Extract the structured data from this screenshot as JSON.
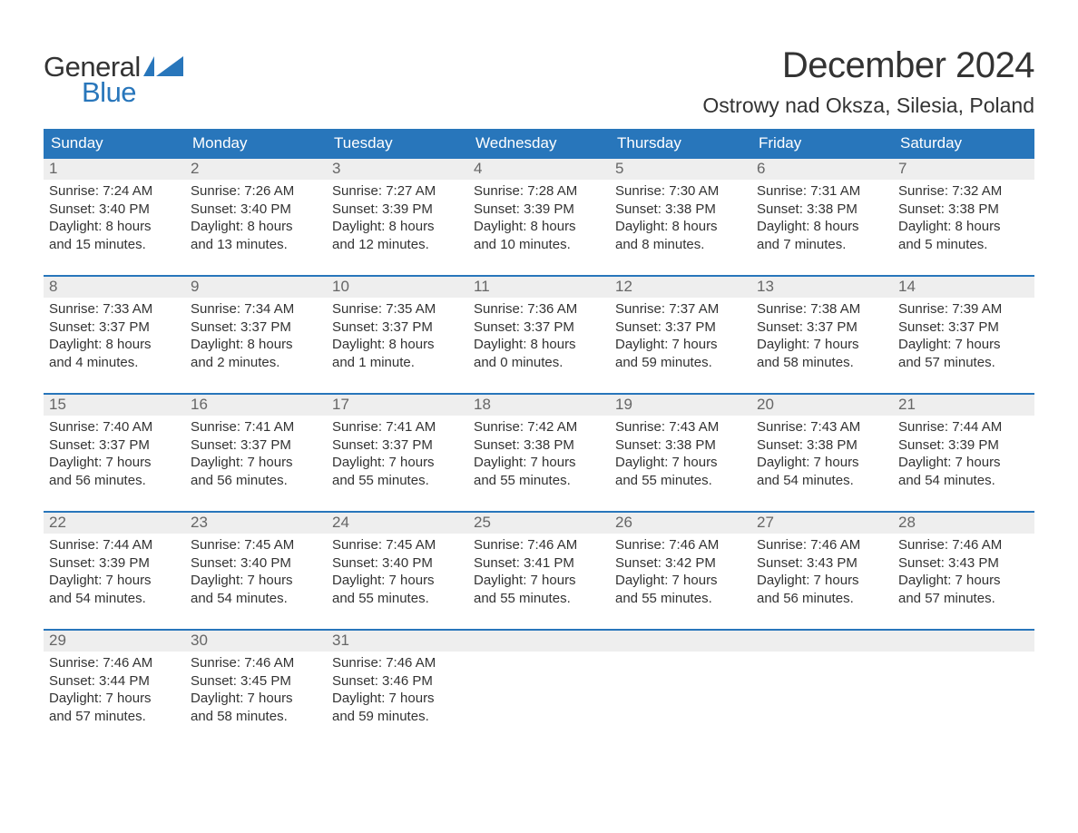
{
  "logo": {
    "general": "General",
    "blue": "Blue",
    "flag_color": "#2876bb"
  },
  "title": "December 2024",
  "location": "Ostrowy nad Oksza, Silesia, Poland",
  "colors": {
    "header_bg": "#2876bb",
    "header_text": "#ffffff",
    "week_border": "#2876bb",
    "daynum_bg": "#eeeeee",
    "daynum_text": "#666666",
    "body_text": "#333333",
    "page_bg": "#ffffff"
  },
  "day_names": [
    "Sunday",
    "Monday",
    "Tuesday",
    "Wednesday",
    "Thursday",
    "Friday",
    "Saturday"
  ],
  "weeks": [
    [
      {
        "n": "1",
        "sunrise": "Sunrise: 7:24 AM",
        "sunset": "Sunset: 3:40 PM",
        "d1": "Daylight: 8 hours",
        "d2": "and 15 minutes."
      },
      {
        "n": "2",
        "sunrise": "Sunrise: 7:26 AM",
        "sunset": "Sunset: 3:40 PM",
        "d1": "Daylight: 8 hours",
        "d2": "and 13 minutes."
      },
      {
        "n": "3",
        "sunrise": "Sunrise: 7:27 AM",
        "sunset": "Sunset: 3:39 PM",
        "d1": "Daylight: 8 hours",
        "d2": "and 12 minutes."
      },
      {
        "n": "4",
        "sunrise": "Sunrise: 7:28 AM",
        "sunset": "Sunset: 3:39 PM",
        "d1": "Daylight: 8 hours",
        "d2": "and 10 minutes."
      },
      {
        "n": "5",
        "sunrise": "Sunrise: 7:30 AM",
        "sunset": "Sunset: 3:38 PM",
        "d1": "Daylight: 8 hours",
        "d2": "and 8 minutes."
      },
      {
        "n": "6",
        "sunrise": "Sunrise: 7:31 AM",
        "sunset": "Sunset: 3:38 PM",
        "d1": "Daylight: 8 hours",
        "d2": "and 7 minutes."
      },
      {
        "n": "7",
        "sunrise": "Sunrise: 7:32 AM",
        "sunset": "Sunset: 3:38 PM",
        "d1": "Daylight: 8 hours",
        "d2": "and 5 minutes."
      }
    ],
    [
      {
        "n": "8",
        "sunrise": "Sunrise: 7:33 AM",
        "sunset": "Sunset: 3:37 PM",
        "d1": "Daylight: 8 hours",
        "d2": "and 4 minutes."
      },
      {
        "n": "9",
        "sunrise": "Sunrise: 7:34 AM",
        "sunset": "Sunset: 3:37 PM",
        "d1": "Daylight: 8 hours",
        "d2": "and 2 minutes."
      },
      {
        "n": "10",
        "sunrise": "Sunrise: 7:35 AM",
        "sunset": "Sunset: 3:37 PM",
        "d1": "Daylight: 8 hours",
        "d2": "and 1 minute."
      },
      {
        "n": "11",
        "sunrise": "Sunrise: 7:36 AM",
        "sunset": "Sunset: 3:37 PM",
        "d1": "Daylight: 8 hours",
        "d2": "and 0 minutes."
      },
      {
        "n": "12",
        "sunrise": "Sunrise: 7:37 AM",
        "sunset": "Sunset: 3:37 PM",
        "d1": "Daylight: 7 hours",
        "d2": "and 59 minutes."
      },
      {
        "n": "13",
        "sunrise": "Sunrise: 7:38 AM",
        "sunset": "Sunset: 3:37 PM",
        "d1": "Daylight: 7 hours",
        "d2": "and 58 minutes."
      },
      {
        "n": "14",
        "sunrise": "Sunrise: 7:39 AM",
        "sunset": "Sunset: 3:37 PM",
        "d1": "Daylight: 7 hours",
        "d2": "and 57 minutes."
      }
    ],
    [
      {
        "n": "15",
        "sunrise": "Sunrise: 7:40 AM",
        "sunset": "Sunset: 3:37 PM",
        "d1": "Daylight: 7 hours",
        "d2": "and 56 minutes."
      },
      {
        "n": "16",
        "sunrise": "Sunrise: 7:41 AM",
        "sunset": "Sunset: 3:37 PM",
        "d1": "Daylight: 7 hours",
        "d2": "and 56 minutes."
      },
      {
        "n": "17",
        "sunrise": "Sunrise: 7:41 AM",
        "sunset": "Sunset: 3:37 PM",
        "d1": "Daylight: 7 hours",
        "d2": "and 55 minutes."
      },
      {
        "n": "18",
        "sunrise": "Sunrise: 7:42 AM",
        "sunset": "Sunset: 3:38 PM",
        "d1": "Daylight: 7 hours",
        "d2": "and 55 minutes."
      },
      {
        "n": "19",
        "sunrise": "Sunrise: 7:43 AM",
        "sunset": "Sunset: 3:38 PM",
        "d1": "Daylight: 7 hours",
        "d2": "and 55 minutes."
      },
      {
        "n": "20",
        "sunrise": "Sunrise: 7:43 AM",
        "sunset": "Sunset: 3:38 PM",
        "d1": "Daylight: 7 hours",
        "d2": "and 54 minutes."
      },
      {
        "n": "21",
        "sunrise": "Sunrise: 7:44 AM",
        "sunset": "Sunset: 3:39 PM",
        "d1": "Daylight: 7 hours",
        "d2": "and 54 minutes."
      }
    ],
    [
      {
        "n": "22",
        "sunrise": "Sunrise: 7:44 AM",
        "sunset": "Sunset: 3:39 PM",
        "d1": "Daylight: 7 hours",
        "d2": "and 54 minutes."
      },
      {
        "n": "23",
        "sunrise": "Sunrise: 7:45 AM",
        "sunset": "Sunset: 3:40 PM",
        "d1": "Daylight: 7 hours",
        "d2": "and 54 minutes."
      },
      {
        "n": "24",
        "sunrise": "Sunrise: 7:45 AM",
        "sunset": "Sunset: 3:40 PM",
        "d1": "Daylight: 7 hours",
        "d2": "and 55 minutes."
      },
      {
        "n": "25",
        "sunrise": "Sunrise: 7:46 AM",
        "sunset": "Sunset: 3:41 PM",
        "d1": "Daylight: 7 hours",
        "d2": "and 55 minutes."
      },
      {
        "n": "26",
        "sunrise": "Sunrise: 7:46 AM",
        "sunset": "Sunset: 3:42 PM",
        "d1": "Daylight: 7 hours",
        "d2": "and 55 minutes."
      },
      {
        "n": "27",
        "sunrise": "Sunrise: 7:46 AM",
        "sunset": "Sunset: 3:43 PM",
        "d1": "Daylight: 7 hours",
        "d2": "and 56 minutes."
      },
      {
        "n": "28",
        "sunrise": "Sunrise: 7:46 AM",
        "sunset": "Sunset: 3:43 PM",
        "d1": "Daylight: 7 hours",
        "d2": "and 57 minutes."
      }
    ],
    [
      {
        "n": "29",
        "sunrise": "Sunrise: 7:46 AM",
        "sunset": "Sunset: 3:44 PM",
        "d1": "Daylight: 7 hours",
        "d2": "and 57 minutes."
      },
      {
        "n": "30",
        "sunrise": "Sunrise: 7:46 AM",
        "sunset": "Sunset: 3:45 PM",
        "d1": "Daylight: 7 hours",
        "d2": "and 58 minutes."
      },
      {
        "n": "31",
        "sunrise": "Sunrise: 7:46 AM",
        "sunset": "Sunset: 3:46 PM",
        "d1": "Daylight: 7 hours",
        "d2": "and 59 minutes."
      },
      null,
      null,
      null,
      null
    ]
  ]
}
